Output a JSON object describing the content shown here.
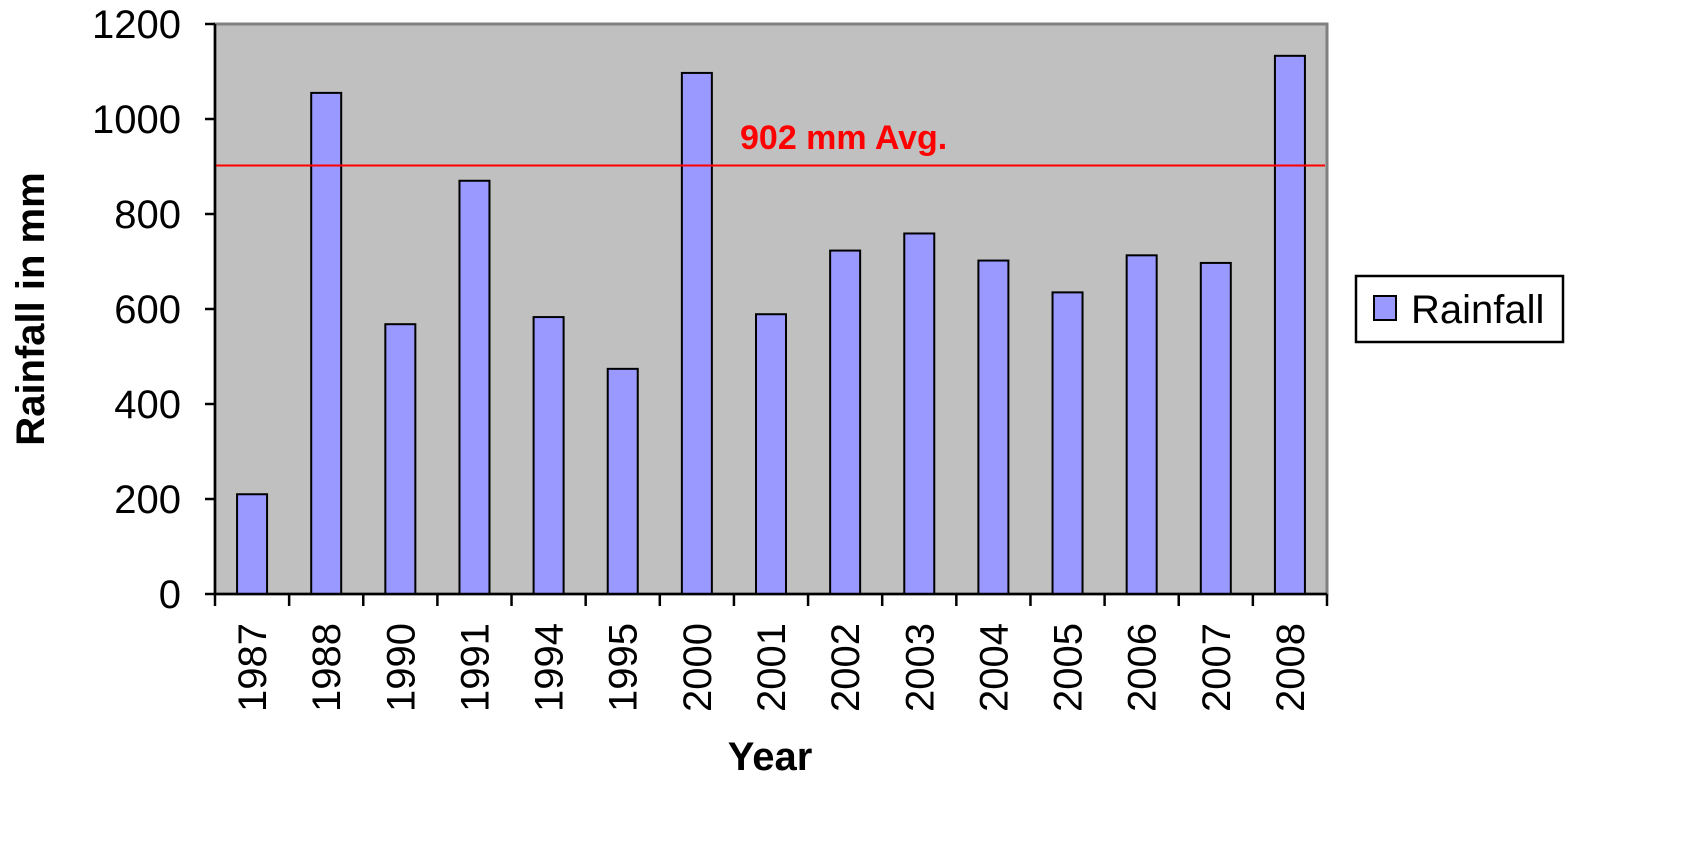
{
  "chart_data": {
    "type": "bar",
    "title": "",
    "xlabel": "Year",
    "ylabel": "Rainfall in mm",
    "categories": [
      "1987",
      "1988",
      "1990",
      "1991",
      "1994",
      "1995",
      "2000",
      "2001",
      "2002",
      "2003",
      "2004",
      "2005",
      "2006",
      "2007",
      "2008"
    ],
    "series": [
      {
        "name": "Rainfall",
        "values": [
          210,
          1055,
          568,
          870,
          583,
          474,
          1097,
          589,
          723,
          759,
          702,
          635,
          713,
          697,
          1133
        ]
      }
    ],
    "ylim": [
      0,
      1200
    ],
    "yticks": [
      "0",
      "200",
      "400",
      "600",
      "800",
      "1000",
      "1200"
    ],
    "grid": false,
    "legend_position": "right",
    "reference_line": {
      "value": 902,
      "label": "902 mm Avg.",
      "color": "#ff0000"
    },
    "colors": {
      "bar_fill": "#9999ff",
      "bar_stroke": "#000000",
      "plot_background": "#c0c0c0",
      "plot_border": "#808080"
    }
  }
}
